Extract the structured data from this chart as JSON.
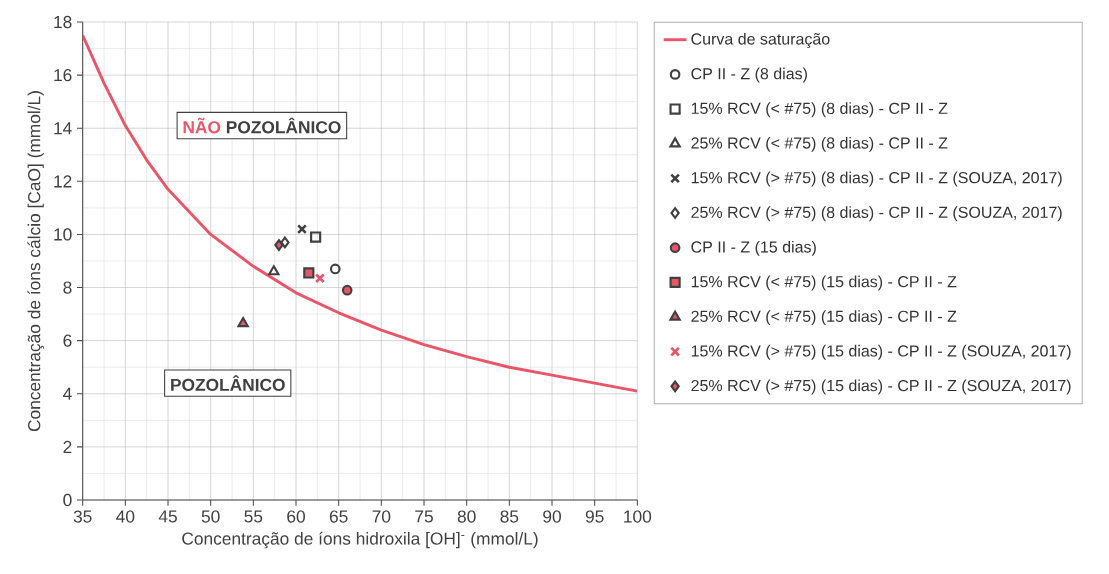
{
  "chart_data": {
    "type": "scatter",
    "xlabel": "Concentração de íons hidroxila  [OH]$^{-}$ (mmol/L)",
    "ylabel": "Concentração de íons cálcio [CaO] (mmol/L)",
    "xlim": [
      35,
      100
    ],
    "ylim": [
      0,
      18
    ],
    "xticks": [
      35,
      40,
      45,
      50,
      55,
      60,
      65,
      70,
      75,
      80,
      85,
      90,
      95,
      100
    ],
    "yticks": [
      0,
      2,
      4,
      6,
      8,
      10,
      12,
      14,
      16,
      18
    ],
    "grid": true,
    "legend": "right",
    "annotations": [
      "NÃO",
      "POZOLÂNICO",
      "POZOLÂNICO"
    ],
    "series": [
      {
        "name": "Curva de saturação",
        "type": "line",
        "color": "#e8566a",
        "marker": "none",
        "x": [
          35,
          37.5,
          40,
          42.5,
          45,
          50,
          55,
          60,
          65,
          70,
          75,
          80,
          85,
          90,
          95,
          100
        ],
        "values": [
          17.5,
          15.7,
          14.1,
          12.8,
          11.7,
          10.0,
          8.8,
          7.8,
          7.05,
          6.4,
          5.85,
          5.4,
          5.0,
          4.7,
          4.4,
          4.1
        ]
      },
      {
        "name": "CP II - Z (8 dias)",
        "color": "#404040",
        "marker": "circle",
        "x": [
          64.6
        ],
        "values": [
          8.7
        ]
      },
      {
        "name": "15% RCV (< #75) (8 dias) - CP II - Z",
        "color": "#404040",
        "marker": "square",
        "x": [
          62.3
        ],
        "values": [
          9.9
        ]
      },
      {
        "name": "25% RCV (< #75) (8 dias) - CP II - Z",
        "color": "#404040",
        "marker": "triangle",
        "x": [
          57.4
        ],
        "values": [
          8.6
        ]
      },
      {
        "name": "15% RCV (> #75) (8 dias) - CP II - Z (SOUZA, 2017)",
        "color": "#404040",
        "marker": "cross",
        "x": [
          60.7
        ],
        "values": [
          10.2
        ]
      },
      {
        "name": "25% RCV (> #75) (8 dias) - CP II - Z (SOUZA, 2017)",
        "color": "#404040",
        "marker": "diamond",
        "x": [
          58.7
        ],
        "values": [
          9.7
        ]
      },
      {
        "name": "CP II - Z (15 dias)",
        "color": "#e8566a",
        "marker": "circle",
        "x": [
          66.0
        ],
        "values": [
          7.9
        ]
      },
      {
        "name": "15% RCV (< #75) (15 dias) - CP II - Z",
        "color": "#e8566a",
        "marker": "square",
        "x": [
          61.5
        ],
        "values": [
          8.55
        ]
      },
      {
        "name": "25% RCV (< #75) (15 dias) - CP II - Z",
        "color": "#e8566a",
        "marker": "triangle",
        "x": [
          53.8
        ],
        "values": [
          6.65
        ]
      },
      {
        "name": "15% RCV (> #75) (15 dias) - CP II - Z (SOUZA, 2017)",
        "color": "#e8566a",
        "marker": "cross",
        "x": [
          62.8
        ],
        "values": [
          8.35
        ]
      },
      {
        "name": "25% RCV (> #75) (15 dias) - CP II - Z (SOUZA, 2017)",
        "color": "#e8566a",
        "marker": "diamond",
        "x": [
          58.0
        ],
        "values": [
          9.6
        ]
      }
    ]
  }
}
